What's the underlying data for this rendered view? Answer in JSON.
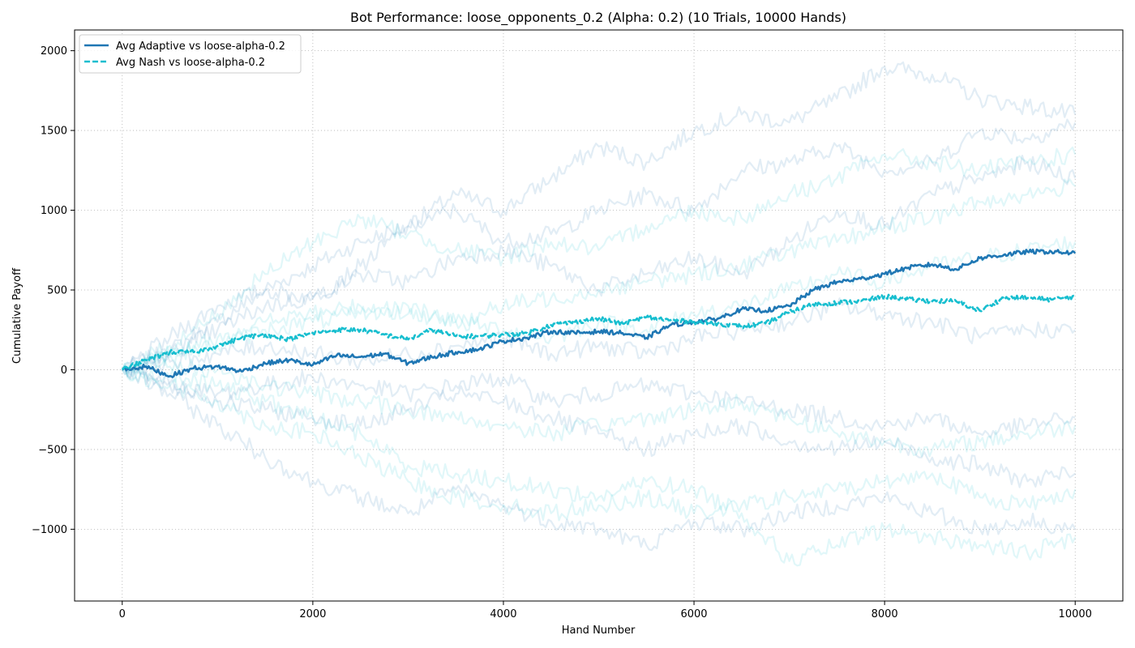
{
  "chart_data": {
    "type": "line",
    "title": "Bot Performance: loose_opponents_0.2 (Alpha: 0.2) (10 Trials, 10000 Hands)",
    "xlabel": "Hand Number",
    "ylabel": "Cumulative Payoff",
    "xlim": [
      -500,
      10500
    ],
    "ylim": [
      -1450,
      2130
    ],
    "xticks": [
      0,
      2000,
      4000,
      6000,
      8000,
      10000
    ],
    "xtick_labels": [
      "0",
      "2000",
      "4000",
      "6000",
      "8000",
      "10000"
    ],
    "yticks": [
      -1000,
      -500,
      0,
      500,
      1000,
      1500,
      2000
    ],
    "ytick_labels": [
      "−1000",
      "−500",
      "0",
      "500",
      "1000",
      "1500",
      "2000"
    ],
    "grid": true,
    "legend_position": "upper-left",
    "colors": {
      "adaptive": "#1f77b4",
      "nash": "#17becf"
    },
    "series": [
      {
        "name": "Avg Adaptive vs loose-alpha-0.2",
        "style": "solid",
        "color": "#1f77b4",
        "x": [
          0,
          250,
          500,
          750,
          1000,
          1250,
          1500,
          1750,
          2000,
          2250,
          2500,
          2750,
          3000,
          3250,
          3500,
          3750,
          4000,
          4250,
          4500,
          4750,
          5000,
          5250,
          5500,
          5750,
          6000,
          6250,
          6500,
          6750,
          7000,
          7250,
          7500,
          7750,
          8000,
          8250,
          8500,
          8750,
          9000,
          9250,
          9500,
          9750,
          10000
        ],
        "y": [
          0,
          20,
          -40,
          10,
          20,
          -10,
          40,
          60,
          30,
          90,
          80,
          100,
          40,
          80,
          110,
          130,
          180,
          200,
          240,
          230,
          240,
          230,
          200,
          280,
          300,
          320,
          380,
          370,
          400,
          500,
          550,
          570,
          600,
          640,
          660,
          630,
          700,
          720,
          740,
          740,
          730
        ]
      },
      {
        "name": "Avg Nash vs loose-alpha-0.2",
        "style": "dashed",
        "color": "#17becf",
        "x": [
          0,
          250,
          500,
          750,
          1000,
          1250,
          1500,
          1750,
          2000,
          2250,
          2500,
          2750,
          3000,
          3250,
          3500,
          3750,
          4000,
          4250,
          4500,
          4750,
          5000,
          5250,
          5500,
          5750,
          6000,
          6250,
          6500,
          6750,
          7000,
          7250,
          7500,
          7750,
          8000,
          8250,
          8500,
          8750,
          9000,
          9250,
          9500,
          9750,
          10000
        ],
        "y": [
          0,
          60,
          110,
          110,
          150,
          200,
          220,
          190,
          230,
          250,
          250,
          220,
          190,
          250,
          210,
          210,
          220,
          230,
          280,
          300,
          320,
          290,
          330,
          310,
          300,
          290,
          270,
          290,
          360,
          410,
          420,
          430,
          460,
          440,
          430,
          430,
          370,
          450,
          450,
          440,
          460
        ]
      }
    ],
    "trials": [
      {
        "color": "#1f77b4",
        "x": [
          0,
          500,
          1000,
          1500,
          2000,
          2500,
          3000,
          3500,
          4000,
          4500,
          5000,
          5500,
          6000,
          6500,
          7000,
          7500,
          8000,
          8500,
          9000,
          9500,
          10000
        ],
        "y": [
          0,
          120,
          300,
          500,
          650,
          800,
          900,
          1100,
          1000,
          1200,
          1400,
          1300,
          1500,
          1600,
          1550,
          1700,
          1900,
          1850,
          1700,
          1650,
          1600
        ]
      },
      {
        "color": "#1f77b4",
        "x": [
          0,
          500,
          1000,
          1500,
          2000,
          2500,
          3000,
          3500,
          4000,
          4500,
          5000,
          5500,
          6000,
          6500,
          7000,
          7500,
          8000,
          8500,
          9000,
          9500,
          10000
        ],
        "y": [
          0,
          200,
          400,
          500,
          450,
          650,
          900,
          1000,
          800,
          850,
          1000,
          1100,
          1000,
          1250,
          1300,
          1400,
          1250,
          1300,
          1500,
          1450,
          1550
        ]
      },
      {
        "color": "#1f77b4",
        "x": [
          0,
          500,
          1000,
          1500,
          2000,
          2500,
          3000,
          3500,
          4000,
          4500,
          5000,
          5500,
          6000,
          6500,
          7000,
          7500,
          8000,
          8500,
          9000,
          9500,
          10000
        ],
        "y": [
          0,
          100,
          250,
          400,
          450,
          600,
          550,
          700,
          750,
          650,
          500,
          600,
          700,
          600,
          800,
          1000,
          900,
          1100,
          1200,
          1300,
          1200
        ]
      },
      {
        "color": "#1f77b4",
        "x": [
          0,
          500,
          1000,
          1500,
          2000,
          2500,
          3000,
          3500,
          4000,
          4500,
          5000,
          5500,
          6000,
          6500,
          7000,
          7500,
          8000,
          8500,
          9000,
          9500,
          10000
        ],
        "y": [
          0,
          50,
          100,
          150,
          100,
          50,
          100,
          150,
          200,
          100,
          150,
          100,
          200,
          250,
          300,
          400,
          350,
          300,
          200,
          250,
          250
        ]
      },
      {
        "color": "#1f77b4",
        "x": [
          0,
          500,
          1000,
          1500,
          2000,
          2500,
          3000,
          3500,
          4000,
          4500,
          5000,
          5500,
          6000,
          6500,
          7000,
          7500,
          8000,
          8500,
          9000,
          9500,
          10000
        ],
        "y": [
          0,
          -100,
          -150,
          -100,
          -50,
          -100,
          -150,
          -100,
          -50,
          -200,
          -150,
          -100,
          -150,
          -200,
          -250,
          -300,
          -350,
          -300,
          -400,
          -350,
          -300
        ]
      },
      {
        "color": "#1f77b4",
        "x": [
          0,
          500,
          1000,
          1500,
          2000,
          2500,
          3000,
          3500,
          4000,
          4500,
          5000,
          5500,
          6000,
          6500,
          7000,
          7500,
          8000,
          8500,
          9000,
          9500,
          10000
        ],
        "y": [
          0,
          -150,
          -350,
          -550,
          -700,
          -800,
          -900,
          -750,
          -850,
          -950,
          -1000,
          -1100,
          -950,
          -1000,
          -900,
          -850,
          -800,
          -900,
          -1000,
          -950,
          -1000
        ]
      },
      {
        "color": "#1f77b4",
        "x": [
          0,
          500,
          1000,
          1500,
          2000,
          2500,
          3000,
          3500,
          4000,
          4500,
          5000,
          5500,
          6000,
          6500,
          7000,
          7500,
          8000,
          8500,
          9000,
          9500,
          10000
        ],
        "y": [
          0,
          -80,
          -200,
          -250,
          -300,
          -350,
          -250,
          -150,
          -200,
          -300,
          -400,
          -500,
          -400,
          -350,
          -450,
          -500,
          -450,
          -550,
          -600,
          -700,
          -650
        ]
      },
      {
        "color": "#17becf",
        "x": [
          0,
          500,
          1000,
          1500,
          2000,
          2500,
          3000,
          3500,
          4000,
          4500,
          5000,
          5500,
          6000,
          6500,
          7000,
          7500,
          8000,
          8500,
          9000,
          9500,
          10000
        ],
        "y": [
          0,
          150,
          350,
          600,
          800,
          950,
          850,
          750,
          700,
          800,
          750,
          900,
          1000,
          950,
          1100,
          1200,
          1350,
          1300,
          1250,
          1300,
          1350
        ]
      },
      {
        "color": "#17becf",
        "x": [
          0,
          500,
          1000,
          1500,
          2000,
          2500,
          3000,
          3500,
          4000,
          4500,
          5000,
          5500,
          6000,
          6500,
          7000,
          7500,
          8000,
          8500,
          9000,
          9500,
          10000
        ],
        "y": [
          0,
          80,
          200,
          300,
          350,
          400,
          350,
          300,
          400,
          450,
          500,
          550,
          600,
          650,
          750,
          800,
          900,
          950,
          1050,
          1100,
          1150
        ]
      },
      {
        "color": "#17becf",
        "x": [
          0,
          500,
          1000,
          1500,
          2000,
          2500,
          3000,
          3500,
          4000,
          4500,
          5000,
          5500,
          6000,
          6500,
          7000,
          7500,
          8000,
          8500,
          9000,
          9500,
          10000
        ],
        "y": [
          0,
          -50,
          -100,
          -200,
          -300,
          -400,
          -600,
          -650,
          -700,
          -750,
          -800,
          -700,
          -750,
          -900,
          -1200,
          -1100,
          -1000,
          -1050,
          -1100,
          -1150,
          -1050
        ]
      },
      {
        "color": "#17becf",
        "x": [
          0,
          500,
          1000,
          1500,
          2000,
          2500,
          3000,
          3500,
          4000,
          4500,
          5000,
          5500,
          6000,
          6500,
          7000,
          7500,
          8000,
          8500,
          9000,
          9500,
          10000
        ],
        "y": [
          0,
          -100,
          -200,
          -350,
          -400,
          -550,
          -700,
          -800,
          -850,
          -900,
          -850,
          -800,
          -900,
          -850,
          -800,
          -750,
          -700,
          -650,
          -800,
          -850,
          -750
        ]
      },
      {
        "color": "#17becf",
        "x": [
          0,
          500,
          1000,
          1500,
          2000,
          2500,
          3000,
          3500,
          4000,
          4500,
          5000,
          5500,
          6000,
          6500,
          7000,
          7500,
          8000,
          8500,
          9000,
          9500,
          10000
        ],
        "y": [
          0,
          20,
          0,
          -100,
          -150,
          -200,
          -250,
          -300,
          -350,
          -400,
          -350,
          -300,
          -250,
          -200,
          -300,
          -400,
          -450,
          -500,
          -450,
          -400,
          -350
        ]
      },
      {
        "color": "#17becf",
        "x": [
          0,
          500,
          1000,
          1500,
          2000,
          2500,
          3000,
          3500,
          4000,
          4500,
          5000,
          5500,
          6000,
          6500,
          7000,
          7500,
          8000,
          8500,
          9000,
          9500,
          10000
        ],
        "y": [
          0,
          100,
          150,
          250,
          300,
          350,
          400,
          300,
          250,
          200,
          300,
          250,
          350,
          400,
          500,
          600,
          550,
          650,
          700,
          750,
          800
        ]
      }
    ]
  }
}
